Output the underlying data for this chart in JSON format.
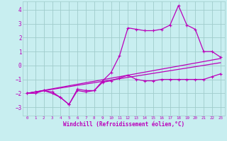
{
  "xlabel": "Windchill (Refroidissement éolien,°C)",
  "bg_color": "#c8eef0",
  "grid_color": "#a0cccc",
  "line_color": "#bb00bb",
  "xlim": [
    -0.5,
    23.5
  ],
  "ylim": [
    -3.6,
    4.6
  ],
  "xticks": [
    0,
    1,
    2,
    3,
    4,
    5,
    6,
    7,
    8,
    9,
    10,
    11,
    12,
    13,
    14,
    15,
    16,
    17,
    18,
    19,
    20,
    21,
    22,
    23
  ],
  "yticks": [
    -3,
    -2,
    -1,
    0,
    1,
    2,
    3,
    4
  ],
  "series": {
    "line_trend1_x": [
      0,
      23
    ],
    "line_trend1_y": [
      -2.0,
      0.5
    ],
    "line_trend2_x": [
      0,
      23
    ],
    "line_trend2_y": [
      -2.0,
      0.2
    ],
    "curve_jagged_x": [
      0,
      1,
      2,
      3,
      4,
      5,
      6,
      7,
      8,
      9,
      10,
      11,
      12,
      13,
      14,
      15,
      16,
      17,
      18,
      19,
      20,
      21,
      22,
      23
    ],
    "curve_jagged_y": [
      -2.0,
      -1.9,
      -1.8,
      -1.9,
      -2.3,
      -2.8,
      -1.7,
      -1.8,
      -1.8,
      -1.1,
      -0.5,
      0.7,
      2.7,
      2.6,
      2.5,
      2.5,
      2.6,
      2.9,
      4.3,
      2.9,
      2.6,
      1.0,
      1.0,
      0.6
    ],
    "curve_flat_x": [
      0,
      1,
      2,
      3,
      4,
      5,
      6,
      7,
      8,
      9,
      10,
      11,
      12,
      13,
      14,
      15,
      16,
      17,
      18,
      19,
      20,
      21,
      22,
      23
    ],
    "curve_flat_y": [
      -2.0,
      -2.0,
      -1.8,
      -2.0,
      -2.3,
      -2.8,
      -1.8,
      -1.9,
      -1.8,
      -1.2,
      -1.1,
      -0.9,
      -0.7,
      -1.0,
      -1.1,
      -1.1,
      -1.0,
      -1.0,
      -1.0,
      -1.0,
      -1.0,
      -1.0,
      -0.8,
      -0.6
    ]
  }
}
